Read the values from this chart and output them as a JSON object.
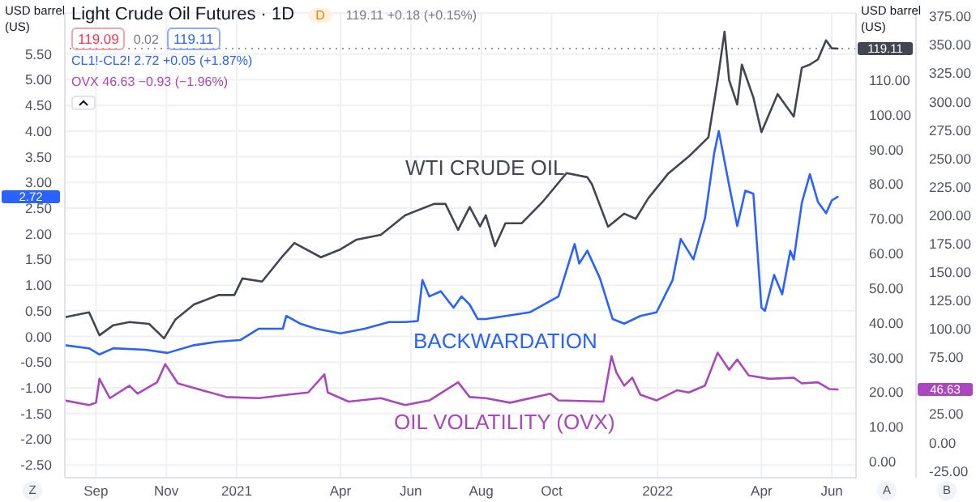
{
  "chart_data": {
    "type": "line",
    "title": "Light Crude Oil Futures · 1D",
    "ylabel": "USD barrel (US)",
    "y2label": "USD barrel (US)",
    "annotations": [
      "D",
      "119.11 +0.18 (+0.15%)",
      "119.09",
      "0.02",
      "119.11",
      "CL1!-CL2! 2.72 +0.05 (+1.87%)",
      "OVX 46.63 −0.93 (−1.96%)",
      "Z",
      "A",
      "B",
      "119.11",
      "2.72",
      "46.63"
    ],
    "xlim": [
      "2020-08-05",
      "2022-06-22"
    ],
    "xticks": [
      {
        "value": "2020-09-01",
        "label": "Sep"
      },
      {
        "value": "2020-11-01",
        "label": "Nov"
      },
      {
        "value": "2021-01-01",
        "label": "2021"
      },
      {
        "value": "2021-04-01",
        "label": "Apr"
      },
      {
        "value": "2021-06-01",
        "label": "Jun"
      },
      {
        "value": "2021-08-01",
        "label": "Aug"
      },
      {
        "value": "2021-10-01",
        "label": "Oct"
      },
      {
        "value": "2022-01-01",
        "label": "2022"
      },
      {
        "value": "2022-04-01",
        "label": "Apr"
      },
      {
        "value": "2022-06-01",
        "label": "Jun"
      }
    ],
    "ylim": [
      -2.75,
      6.3
    ],
    "yticks": [
      {
        "value": -2.5,
        "label": "-2.50"
      },
      {
        "value": -2,
        "label": "-2.00"
      },
      {
        "value": -1.5,
        "label": "-1.50"
      },
      {
        "value": -1,
        "label": "-1.00"
      },
      {
        "value": -0.5,
        "label": "-0.50"
      },
      {
        "value": 0,
        "label": "0.00"
      },
      {
        "value": 0.5,
        "label": "0.50"
      },
      {
        "value": 1,
        "label": "1.00"
      },
      {
        "value": 1.5,
        "label": "1.50"
      },
      {
        "value": 2,
        "label": "2.00"
      },
      {
        "value": 2.5,
        "label": "2.50"
      },
      {
        "value": 3,
        "label": "3.00"
      },
      {
        "value": 3.5,
        "label": "3.50"
      },
      {
        "value": 4,
        "label": "4.00"
      },
      {
        "value": 4.5,
        "label": "4.50"
      },
      {
        "value": 5,
        "label": "5.00"
      },
      {
        "value": 5.5,
        "label": "5.50"
      }
    ],
    "y2lim": [
      -4.7,
      129.4
    ],
    "y2ticks": [
      {
        "value": 0,
        "label": "0.00"
      },
      {
        "value": 10,
        "label": "10.00"
      },
      {
        "value": 20,
        "label": "20.00"
      },
      {
        "value": 30,
        "label": "30.00"
      },
      {
        "value": 40,
        "label": "40.00"
      },
      {
        "value": 50,
        "label": "50.00"
      },
      {
        "value": 60,
        "label": "60.00"
      },
      {
        "value": 70,
        "label": "70.00"
      },
      {
        "value": 80,
        "label": "80.00"
      },
      {
        "value": 90,
        "label": "90.00"
      },
      {
        "value": 100,
        "label": "100.00"
      },
      {
        "value": 110,
        "label": "110.00"
      }
    ],
    "y3lim": [
      -31,
      378
    ],
    "y3ticks": [
      {
        "value": -25,
        "label": "-25.00"
      },
      {
        "value": 0,
        "label": "0.00"
      },
      {
        "value": 25,
        "label": "25.00"
      },
      {
        "value": 75,
        "label": "75.00"
      },
      {
        "value": 100,
        "label": "100.00"
      },
      {
        "value": 125,
        "label": "125.00"
      },
      {
        "value": 150,
        "label": "150.00"
      },
      {
        "value": 175,
        "label": "175.00"
      },
      {
        "value": 200,
        "label": "200.00"
      },
      {
        "value": 225,
        "label": "225.00"
      },
      {
        "value": 250,
        "label": "250.00"
      },
      {
        "value": 275,
        "label": "275.00"
      },
      {
        "value": 300,
        "label": "300.00"
      },
      {
        "value": 325,
        "label": "325.00"
      },
      {
        "value": 350,
        "label": "350.00"
      },
      {
        "value": 375,
        "label": "375.00"
      }
    ],
    "grid": true,
    "ref_lines": [
      {
        "axis": "y2",
        "value": 119.11,
        "color": "#9598a1",
        "line_style": "dotted"
      }
    ],
    "series": [
      {
        "name": "WTI CRUDE OIL",
        "color": "#434651",
        "axis": "y2",
        "x": [
          "2020-08-05",
          "2020-08-26",
          "2020-09-04",
          "2020-09-16",
          "2020-09-30",
          "2020-10-17",
          "2020-10-30",
          "2020-11-09",
          "2020-11-25",
          "2020-12-16",
          "2020-12-30",
          "2021-01-06",
          "2021-01-23",
          "2021-02-10",
          "2021-02-20",
          "2021-03-15",
          "2021-04-01",
          "2021-04-15",
          "2021-05-06",
          "2021-05-27",
          "2021-06-21",
          "2021-07-01",
          "2021-07-12",
          "2021-07-22",
          "2021-07-31",
          "2021-08-05",
          "2021-08-13",
          "2021-08-22",
          "2021-09-05",
          "2021-09-23",
          "2021-10-14",
          "2021-11-01",
          "2021-11-05",
          "2021-11-19",
          "2021-12-03",
          "2021-12-13",
          "2021-12-24",
          "2022-01-10",
          "2022-01-28",
          "2022-02-14",
          "2022-02-22",
          "2022-02-28",
          "2022-03-04",
          "2022-03-11",
          "2022-03-15",
          "2022-03-25",
          "2022-04-01",
          "2022-04-15",
          "2022-04-29",
          "2022-05-06",
          "2022-05-13",
          "2022-05-20",
          "2022-05-27",
          "2022-06-01",
          "2022-06-06"
        ],
        "values": [
          41.6,
          43,
          36.4,
          39.3,
          40.2,
          39.7,
          35.5,
          41,
          45.3,
          48,
          48,
          52.8,
          51.9,
          59.3,
          63,
          58.9,
          61.2,
          64,
          65.4,
          71,
          74.3,
          74.3,
          66.8,
          73.4,
          67.8,
          71,
          62.1,
          68.7,
          68.7,
          74.8,
          83.2,
          82,
          80,
          67.7,
          71.5,
          70,
          76,
          83,
          88,
          93.5,
          110,
          124,
          110,
          103,
          114.5,
          105,
          95,
          106,
          99.5,
          113.6,
          114.5,
          116,
          121.5,
          119.2,
          119.11
        ]
      },
      {
        "name": "BACKWARDATION",
        "color": "#2962ff",
        "axis": "y",
        "x": [
          "2020-08-05",
          "2020-08-26",
          "2020-09-04",
          "2020-09-16",
          "2020-10-14",
          "2020-11-02",
          "2020-11-25",
          "2020-12-16",
          "2021-01-04",
          "2021-01-20",
          "2021-02-10",
          "2021-02-13",
          "2021-02-25",
          "2021-03-11",
          "2021-04-01",
          "2021-04-22",
          "2021-05-13",
          "2021-05-27",
          "2021-06-07",
          "2021-06-11",
          "2021-06-17",
          "2021-06-27",
          "2021-07-08",
          "2021-07-15",
          "2021-07-22",
          "2021-07-29",
          "2021-08-05",
          "2021-09-12",
          "2021-10-07",
          "2021-10-21",
          "2021-10-25",
          "2021-11-01",
          "2021-11-12",
          "2021-11-23",
          "2021-12-03",
          "2021-12-17",
          "2021-12-31",
          "2022-01-14",
          "2022-01-21",
          "2022-02-01",
          "2022-02-11",
          "2022-02-19",
          "2022-02-23",
          "2022-03-04",
          "2022-03-11",
          "2022-03-18",
          "2022-03-25",
          "2022-03-28",
          "2022-04-01",
          "2022-04-04",
          "2022-04-12",
          "2022-04-19",
          "2022-04-26",
          "2022-04-29",
          "2022-05-06",
          "2022-05-13",
          "2022-05-20",
          "2022-05-27",
          "2022-06-01",
          "2022-06-06"
        ],
        "values": [
          -0.17,
          -0.23,
          -0.35,
          -0.23,
          -0.26,
          -0.32,
          -0.17,
          -0.1,
          -0.07,
          0.15,
          0.15,
          0.4,
          0.25,
          0.15,
          0.06,
          0.15,
          0.28,
          0.28,
          0.3,
          1.1,
          0.78,
          0.88,
          0.56,
          0.78,
          0.62,
          0.34,
          0.34,
          0.47,
          0.78,
          1.8,
          1.42,
          1.67,
          1.13,
          0.34,
          0.25,
          0.4,
          0.47,
          1.1,
          1.9,
          1.5,
          2.3,
          3.57,
          4.0,
          2.94,
          2.15,
          2.84,
          2.78,
          1.83,
          0.56,
          0.5,
          1.2,
          0.82,
          1.67,
          1.5,
          2.6,
          3.16,
          2.62,
          2.4,
          2.65,
          2.72
        ]
      },
      {
        "name": "OIL VOLATILITY (OVX)",
        "color": "#ab47bc",
        "axis": "y3",
        "x": [
          "2020-08-05",
          "2020-08-26",
          "2020-09-01",
          "2020-09-04",
          "2020-09-13",
          "2020-09-30",
          "2020-10-07",
          "2020-10-24",
          "2020-10-31",
          "2020-11-11",
          "2020-12-02",
          "2020-12-23",
          "2021-01-20",
          "2021-02-14",
          "2021-03-04",
          "2021-03-18",
          "2021-03-21",
          "2021-04-08",
          "2021-05-06",
          "2021-05-27",
          "2021-06-17",
          "2021-07-12",
          "2021-07-22",
          "2021-08-05",
          "2021-08-26",
          "2021-09-30",
          "2021-10-07",
          "2021-11-15",
          "2021-11-22",
          "2021-11-26",
          "2021-12-03",
          "2021-12-10",
          "2021-12-17",
          "2021-12-31",
          "2022-01-18",
          "2022-01-28",
          "2022-02-11",
          "2022-02-22",
          "2022-03-04",
          "2022-03-11",
          "2022-03-21",
          "2022-04-08",
          "2022-04-29",
          "2022-05-06",
          "2022-05-20",
          "2022-05-30",
          "2022-06-06"
        ],
        "values": [
          37,
          33,
          35,
          56,
          39,
          50,
          43,
          53,
          69,
          52,
          46,
          40,
          39,
          42,
          44,
          60,
          44,
          36,
          39,
          33,
          37,
          53,
          40,
          39,
          35,
          43,
          37,
          36,
          76,
          62,
          50,
          57,
          42,
          37,
          46,
          44,
          50,
          79,
          64,
          73,
          59,
          56,
          57,
          52,
          53,
          47,
          46.63
        ]
      }
    ]
  }
}
